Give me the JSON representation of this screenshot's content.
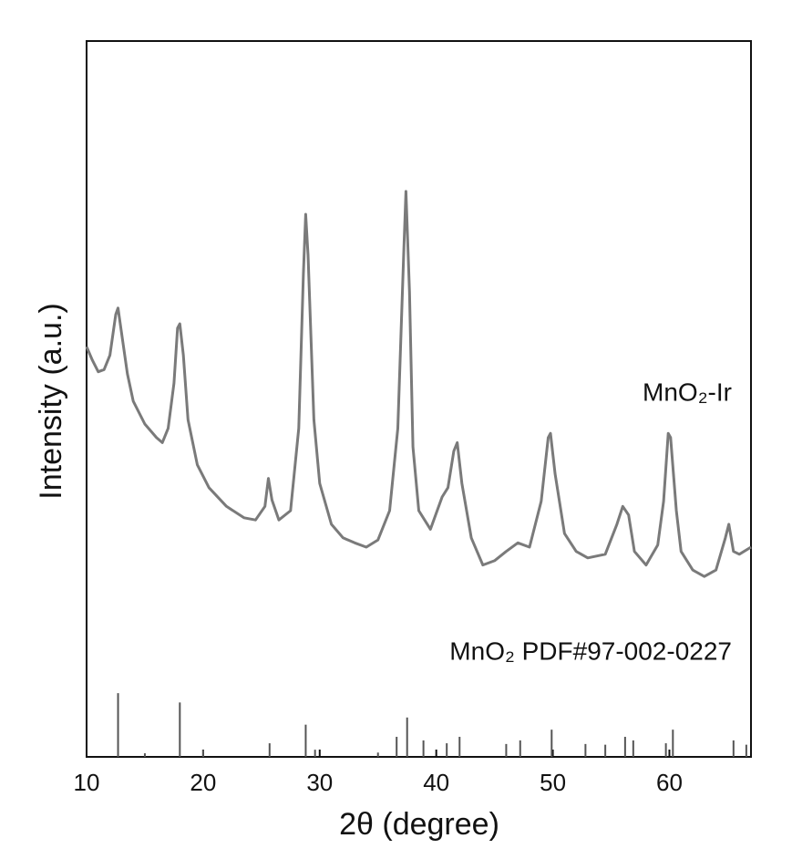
{
  "chart_data": {
    "type": "line",
    "xlabel": "2θ (degree)",
    "ylabel": "Intensity (a.u.)",
    "xlim": [
      10,
      67
    ],
    "ylim": [
      0,
      100
    ],
    "xticks": [
      10,
      20,
      30,
      40,
      50,
      60
    ],
    "series": [
      {
        "name": "MnO₂-Ir",
        "color": "#7a7a7a",
        "x": [
          10,
          10.5,
          11,
          11.5,
          12,
          12.5,
          12.7,
          13,
          13.5,
          14,
          15,
          16,
          16.5,
          17,
          17.5,
          17.8,
          18,
          18.3,
          18.7,
          19.5,
          20.5,
          22,
          23.5,
          24.5,
          25.3,
          25.6,
          25.9,
          26.5,
          27.5,
          28.2,
          28.6,
          28.8,
          29,
          29.5,
          30,
          31,
          32,
          33,
          34,
          35,
          36,
          36.7,
          37.2,
          37.4,
          37.7,
          38,
          38.5,
          39.5,
          40.5,
          41,
          41.5,
          41.8,
          42.2,
          43,
          44,
          45,
          46,
          47,
          48,
          49,
          49.6,
          49.8,
          50.2,
          51,
          52,
          53,
          54.5,
          55.5,
          56,
          56.5,
          57,
          58,
          59,
          59.5,
          59.9,
          60.1,
          60.6,
          61,
          62,
          63,
          64,
          64.8,
          65.1,
          65.5,
          66,
          67
        ],
        "values": [
          57.3,
          55.4,
          53.8,
          54.1,
          56.1,
          61.8,
          62.7,
          59.2,
          53.5,
          49.7,
          46.5,
          44.6,
          43.9,
          45.9,
          52.2,
          59.9,
          60.5,
          56.1,
          47.1,
          40.8,
          37.6,
          35.0,
          33.4,
          33.1,
          35.0,
          38.9,
          35.9,
          33.1,
          34.4,
          45.9,
          67.5,
          75.8,
          70.1,
          47.1,
          38.2,
          32.5,
          30.6,
          29.9,
          29.3,
          30.3,
          34.4,
          45.9,
          70.1,
          79.0,
          65.0,
          43.3,
          34.4,
          31.8,
          36.3,
          37.6,
          42.7,
          43.9,
          38.2,
          30.6,
          26.8,
          27.4,
          28.7,
          29.9,
          29.3,
          35.7,
          44.6,
          45.2,
          39.5,
          31.2,
          28.7,
          27.8,
          28.3,
          32.5,
          35.0,
          33.8,
          28.7,
          26.8,
          29.6,
          35.7,
          45.2,
          44.6,
          34.4,
          28.7,
          26.1,
          25.2,
          26.1,
          30.6,
          32.5,
          28.7,
          28.3,
          29.3
        ]
      },
      {
        "name": "MnO₂ PDF#97-002-0227",
        "color": "#555555",
        "type": "stem",
        "x": [
          12.7,
          15,
          18,
          20,
          25.7,
          28.8,
          29.6,
          35,
          36.6,
          37.5,
          38.9,
          40.9,
          42,
          46,
          47.2,
          49.9,
          52.8,
          54.5,
          56.2,
          56.9,
          59.7,
          60.3,
          65.5,
          66.6
        ],
        "values": [
          8.9,
          0.5,
          7.6,
          1.0,
          1.9,
          4.5,
          1.0,
          0.6,
          2.8,
          5.5,
          2.3,
          1.9,
          2.8,
          1.8,
          2.3,
          3.8,
          1.8,
          1.7,
          2.8,
          2.3,
          1.9,
          3.8,
          2.3,
          1.7
        ]
      }
    ]
  }
}
